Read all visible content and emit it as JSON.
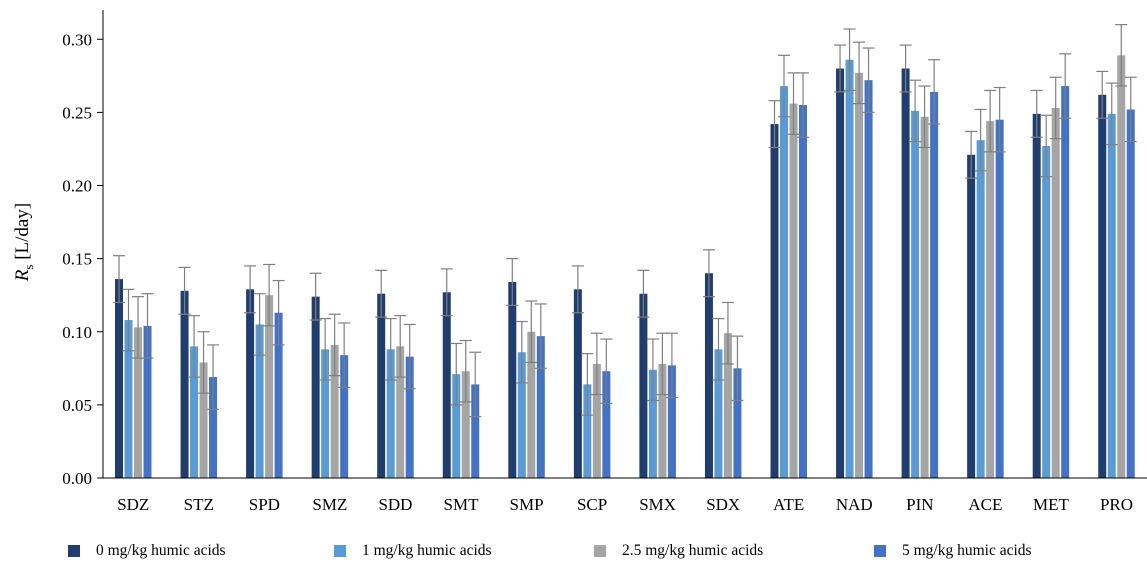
{
  "chart_data": {
    "type": "bar",
    "ylabel": "R",
    "ylabel_sub": "s",
    "ylabel_unit": " [L/day]",
    "ylim": [
      0,
      0.32
    ],
    "yticks": [
      "0.00",
      "0.05",
      "0.10",
      "0.15",
      "0.20",
      "0.25",
      "0.30"
    ],
    "ytick_values": [
      0,
      0.05,
      0.1,
      0.15,
      0.2,
      0.25,
      0.3
    ],
    "grid": false,
    "legend_position": "bottom",
    "categories": [
      "SDZ",
      "STZ",
      "SPD",
      "SMZ",
      "SDD",
      "SMT",
      "SMP",
      "SCP",
      "SMX",
      "SDX",
      "ATE",
      "NAD",
      "PIN",
      "ACE",
      "MET",
      "PRO"
    ],
    "series": [
      {
        "name": "0 mg/kg humic acids",
        "color": "#203d6e",
        "values": [
          0.136,
          0.128,
          0.129,
          0.124,
          0.126,
          0.127,
          0.134,
          0.129,
          0.126,
          0.14,
          0.242,
          0.28,
          0.28,
          0.221,
          0.249,
          0.262
        ],
        "errors": [
          0.016,
          0.016,
          0.016,
          0.016,
          0.016,
          0.016,
          0.016,
          0.016,
          0.016,
          0.016,
          0.016,
          0.016,
          0.016,
          0.016,
          0.016,
          0.016
        ]
      },
      {
        "name": "1 mg/kg humic acids",
        "color": "#5b9bd5",
        "values": [
          0.108,
          0.09,
          0.105,
          0.088,
          0.088,
          0.071,
          0.086,
          0.064,
          0.074,
          0.088,
          0.268,
          0.286,
          0.251,
          0.231,
          0.227,
          0.249
        ],
        "errors": [
          0.021,
          0.021,
          0.021,
          0.021,
          0.021,
          0.021,
          0.021,
          0.021,
          0.021,
          0.021,
          0.021,
          0.021,
          0.021,
          0.021,
          0.021,
          0.021
        ]
      },
      {
        "name": "2.5 mg/kg humic acids",
        "color": "#a5a5a5",
        "values": [
          0.103,
          0.079,
          0.125,
          0.091,
          0.09,
          0.073,
          0.1,
          0.078,
          0.078,
          0.099,
          0.256,
          0.277,
          0.247,
          0.244,
          0.253,
          0.289
        ],
        "errors": [
          0.021,
          0.021,
          0.021,
          0.021,
          0.021,
          0.021,
          0.021,
          0.021,
          0.021,
          0.021,
          0.021,
          0.021,
          0.021,
          0.021,
          0.021,
          0.021
        ]
      },
      {
        "name": "5 mg/kg humic acids",
        "color": "#4472c4",
        "values": [
          0.104,
          0.069,
          0.113,
          0.084,
          0.083,
          0.064,
          0.097,
          0.073,
          0.077,
          0.075,
          0.255,
          0.272,
          0.264,
          0.245,
          0.268,
          0.252
        ],
        "errors": [
          0.022,
          0.022,
          0.022,
          0.022,
          0.022,
          0.022,
          0.022,
          0.022,
          0.022,
          0.022,
          0.022,
          0.022,
          0.022,
          0.022,
          0.022,
          0.022
        ]
      }
    ]
  }
}
